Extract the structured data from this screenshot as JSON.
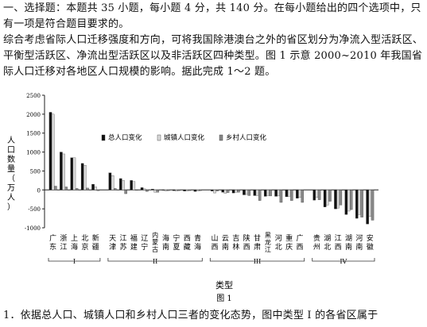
{
  "intro_text": "一、选择题：本题共 35 小题，每小题 4 分，共 140 分。在每小题给出的四个选项中，只有一项是符合题目要求的。",
  "context_text": "综合考虑省际人口迁移强度和方向，可将我国除港澳台之外的省区划分为净流入型活跃区、平衡型活跃区、净流出型活跃区以及非活跃区四种类型。图 1 示意 2000~2010 年我国省际人口迁移对各地区人口规模的影响。据此完成 1～2 题。",
  "question_1": "1．依据总人口、城镇人口和乡村人口三者的变化态势，图中类型 I 的各省区属于",
  "figure_caption": "图 1",
  "chart_data": {
    "type": "bar",
    "ylabel": "人口数量（万人）",
    "xlabel": "类型",
    "ylim": [
      -1000,
      2500
    ],
    "yticks": [
      2500,
      2000,
      1500,
      1000,
      500,
      0,
      -500,
      -1000
    ],
    "legend_placement": "top-center",
    "categories": [
      "广东",
      "浙江",
      "上海",
      "北京",
      "新疆",
      "天津",
      "江苏",
      "福建",
      "辽宁",
      "内蒙古",
      "海南",
      "宁夏",
      "西藏",
      "青海",
      "山西",
      "云南",
      "吉林",
      "陕西",
      "甘肃",
      "黑龙江",
      "河北",
      "重庆",
      "广西",
      "贵州",
      "湖北",
      "江西",
      "湖南",
      "河南",
      "安徽"
    ],
    "groups": [
      {
        "label": "I",
        "categories": [
          "广东",
          "浙江",
          "上海",
          "北京",
          "新疆"
        ]
      },
      {
        "label": "II",
        "categories": [
          "天津",
          "江苏",
          "福建",
          "辽宁",
          "内蒙古",
          "海南",
          "宁夏",
          "西藏",
          "青海"
        ]
      },
      {
        "label": "III",
        "categories": [
          "山西",
          "云南",
          "吉林",
          "陕西",
          "甘肃",
          "黑龙江",
          "河北",
          "重庆",
          "广西"
        ]
      },
      {
        "label": "IV",
        "categories": [
          "贵州",
          "湖北",
          "江西",
          "湖南",
          "河南",
          "安徽"
        ]
      }
    ],
    "series": [
      {
        "name": "总人口变化",
        "color": "#111111",
        "values": [
          2050,
          1000,
          850,
          700,
          150,
          450,
          300,
          250,
          60,
          20,
          -10,
          -20,
          -30,
          -40,
          -30,
          -60,
          -80,
          -130,
          -150,
          -170,
          -170,
          -180,
          -220,
          -270,
          -450,
          -500,
          -650,
          -750,
          -900
        ]
      },
      {
        "name": "城镇人口变化",
        "color": "#d9d9d9",
        "values": [
          2000,
          950,
          850,
          650,
          80,
          380,
          250,
          220,
          30,
          -60,
          -30,
          -30,
          -30,
          -30,
          -80,
          -90,
          -60,
          -120,
          -150,
          -150,
          -160,
          -170,
          -200,
          -200,
          -400,
          -480,
          -560,
          -650,
          -700
        ]
      },
      {
        "name": "乡村人口变化",
        "color": "#888888",
        "values": [
          100,
          80,
          40,
          50,
          -20,
          40,
          -100,
          -10,
          -40,
          -60,
          -20,
          -20,
          -20,
          -20,
          -30,
          -70,
          -60,
          -150,
          -280,
          -160,
          -330,
          -280,
          -330,
          -260,
          -300,
          -400,
          -520,
          -720,
          -800
        ]
      }
    ]
  }
}
